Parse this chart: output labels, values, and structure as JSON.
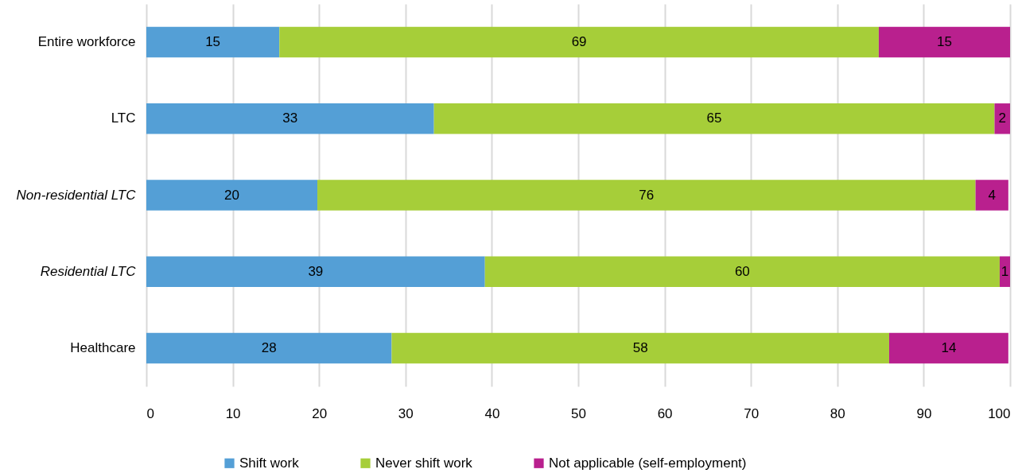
{
  "chart_data": {
    "type": "bar",
    "orientation": "horizontal",
    "stacked": true,
    "categories": [
      "Entire workforce",
      "LTC",
      "Non-residential LTC",
      "Residential LTC",
      "Healthcare"
    ],
    "series": [
      {
        "name": "Shift work",
        "color": "#549fd6",
        "values": [
          15.4,
          33.3,
          19.8,
          39.2,
          28.4
        ],
        "value_labels": [
          "15",
          "33",
          "20",
          "39",
          "28"
        ]
      },
      {
        "name": "Never shift work",
        "color": "#a6ce39",
        "values": [
          69.4,
          64.9,
          76.2,
          59.6,
          57.6
        ],
        "value_labels": [
          "69",
          "65",
          "76",
          "60",
          "58"
        ]
      },
      {
        "name": "Not applicable (self-employment)",
        "color": "#b9208e",
        "values": [
          15.2,
          1.8,
          3.8,
          1.2,
          13.8
        ],
        "value_labels": [
          "15",
          "2",
          "4",
          "1",
          "14"
        ]
      }
    ],
    "xlim": [
      0,
      100
    ],
    "xticks": [
      0,
      10,
      20,
      30,
      40,
      50,
      60,
      70,
      80,
      90,
      100
    ],
    "grid": "x",
    "legend": "bottom"
  }
}
